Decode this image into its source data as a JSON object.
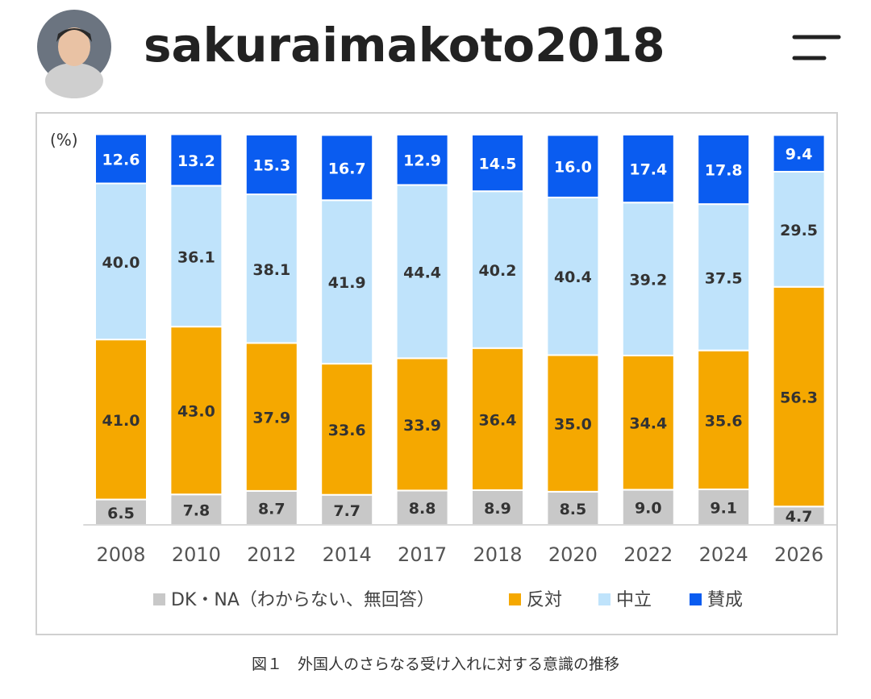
{
  "header": {
    "username": "sakuraimakoto2018"
  },
  "chart_data": {
    "type": "stacked_bar",
    "y_unit_label": "(%)",
    "categories": [
      "2008",
      "2010",
      "2012",
      "2014",
      "2017",
      "2018",
      "2020",
      "2022",
      "2024",
      "2026"
    ],
    "ylim": [
      0,
      100
    ],
    "series": [
      {
        "name": "DK・NA（わからない、無回答）",
        "color": "#c8c8c8",
        "values": [
          6.5,
          7.8,
          8.7,
          7.7,
          8.8,
          8.9,
          8.5,
          9.0,
          9.1,
          4.7
        ],
        "value_labels": [
          "6.5",
          "7.8",
          "8.7",
          "7.7",
          "8.8",
          "8.9",
          "8.5",
          "9.0",
          "9.1",
          "4.7"
        ]
      },
      {
        "name": "反対",
        "color": "#f5a800",
        "values": [
          41.0,
          43.0,
          37.9,
          33.6,
          33.9,
          36.4,
          35.0,
          34.4,
          35.6,
          56.3
        ],
        "value_labels": [
          "41.0",
          "43.0",
          "37.9",
          "33.6",
          "33.9",
          "36.4",
          "35.0",
          "34.4",
          "35.6",
          "56.3"
        ]
      },
      {
        "name": "中立",
        "color": "#bfe3fb",
        "values": [
          40.0,
          36.1,
          38.1,
          41.9,
          44.4,
          40.2,
          40.4,
          39.2,
          37.5,
          29.5
        ],
        "value_labels": [
          "40.0",
          "36.1",
          "38.1",
          "41.9",
          "44.4",
          "40.2",
          "40.4",
          "39.2",
          "37.5",
          "29.5"
        ]
      },
      {
        "name": "賛成",
        "color": "#0a5cf0",
        "values": [
          12.6,
          13.2,
          15.3,
          16.7,
          12.9,
          14.5,
          16.0,
          17.4,
          17.8,
          9.4
        ],
        "value_labels": [
          "12.6",
          "13.2",
          "15.3",
          "16.7",
          "12.9",
          "14.5",
          "16.0",
          "17.4",
          "17.8",
          "9.4"
        ]
      }
    ]
  },
  "caption": "図１　外国人のさらなる受け入れに対する意識の推移"
}
